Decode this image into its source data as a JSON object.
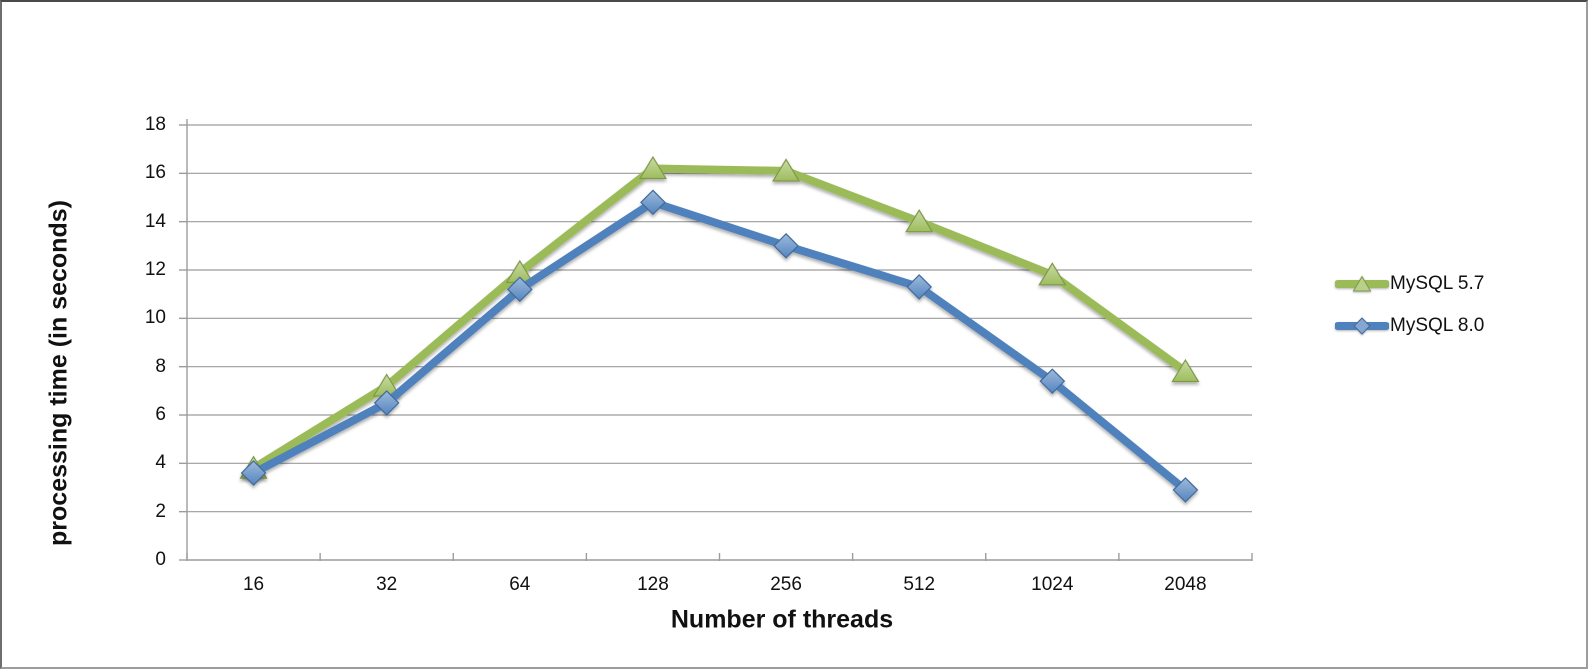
{
  "chart_data": {
    "type": "line",
    "title": "",
    "xlabel": "Number of threads",
    "ylabel": "processing time (in seconds)",
    "categories": [
      "16",
      "32",
      "64",
      "128",
      "256",
      "512",
      "1024",
      "2048"
    ],
    "series": [
      {
        "name": "MySQL 5.7",
        "marker": "triangle",
        "color": "#9BBB59",
        "values": [
          3.8,
          7.2,
          11.9,
          16.2,
          16.1,
          14.0,
          11.8,
          7.8
        ]
      },
      {
        "name": "MySQL 8.0",
        "marker": "diamond",
        "color": "#4F81BD",
        "values": [
          3.6,
          6.5,
          11.2,
          14.8,
          13.0,
          11.3,
          7.4,
          2.9
        ]
      }
    ],
    "ylim": [
      0,
      18
    ],
    "ytick_step": 2,
    "yticks": [
      "0",
      "2",
      "4",
      "6",
      "8",
      "10",
      "12",
      "14",
      "16",
      "18"
    ],
    "grid": "horizontal",
    "legend_position": "right"
  },
  "colors": {
    "gridline": "#9c9c9c",
    "axis": "#9c9c9c",
    "text": "#111111",
    "background": "#ffffff"
  }
}
